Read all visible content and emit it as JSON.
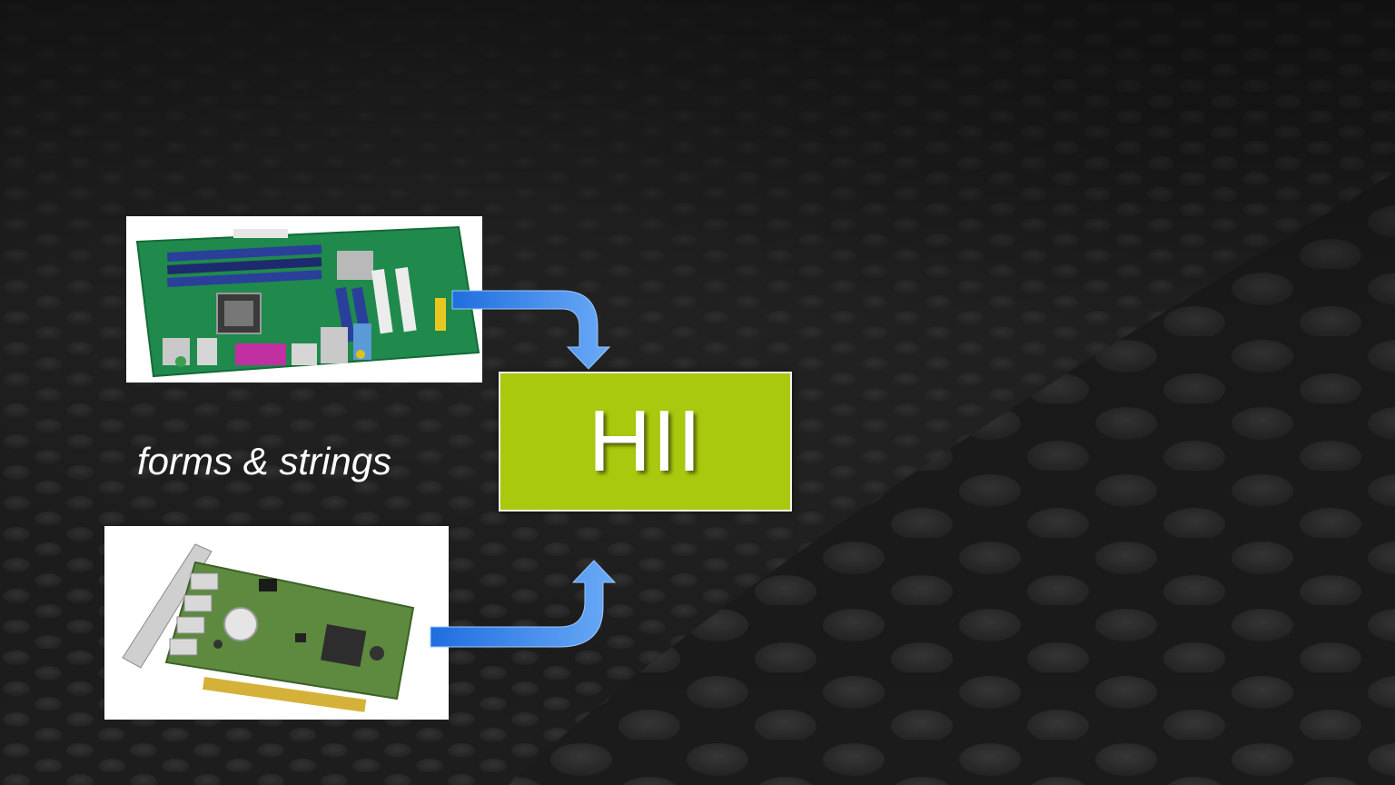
{
  "diagram": {
    "hub_label": "HII",
    "caption": "forms & strings",
    "sources": [
      {
        "name": "motherboard",
        "image": "motherboard-photo"
      },
      {
        "name": "expansion-card",
        "image": "pcie-add-in-card-photo"
      }
    ],
    "colors": {
      "hub_fill": "#a9c90e",
      "arrow": "#3d8ef0",
      "background": "#1d1d1d"
    }
  }
}
